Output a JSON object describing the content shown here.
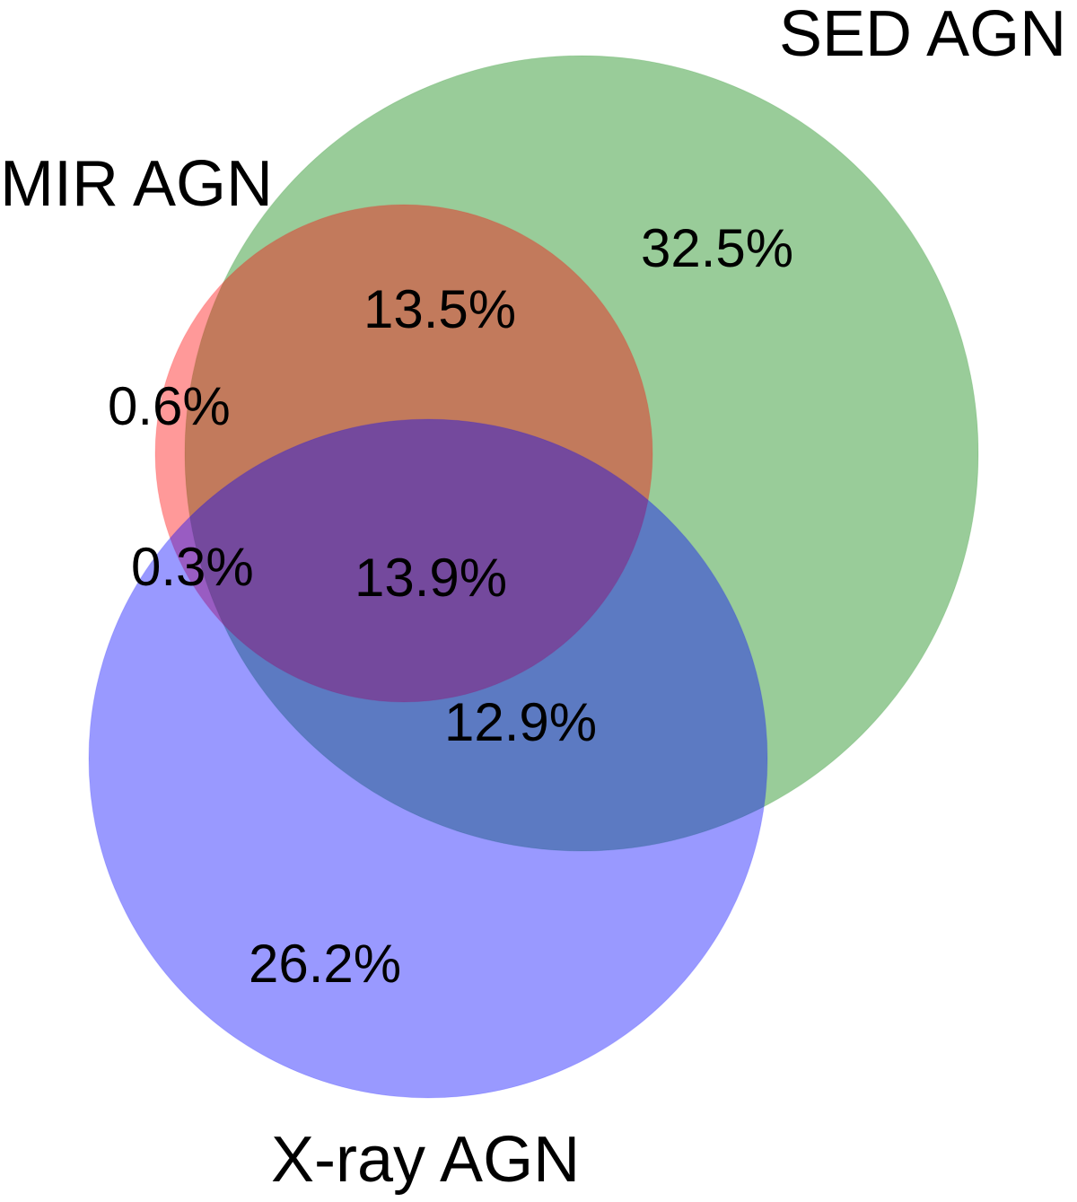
{
  "venn": {
    "sets": {
      "mir": {
        "label": "MIR AGN",
        "color": "#ff0000"
      },
      "sed": {
        "label": "SED AGN",
        "color": "#008000"
      },
      "xray": {
        "label": "X-ray AGN",
        "color": "#0000ff"
      }
    },
    "regions": {
      "sed_only": "32.5%",
      "mir_sed": "13.5%",
      "mir_only": "0.6%",
      "mir_xray": "0.3%",
      "all_three": "13.9%",
      "sed_xray": "12.9%",
      "xray_only": "26.2%"
    },
    "fill_opacity": 0.4
  }
}
